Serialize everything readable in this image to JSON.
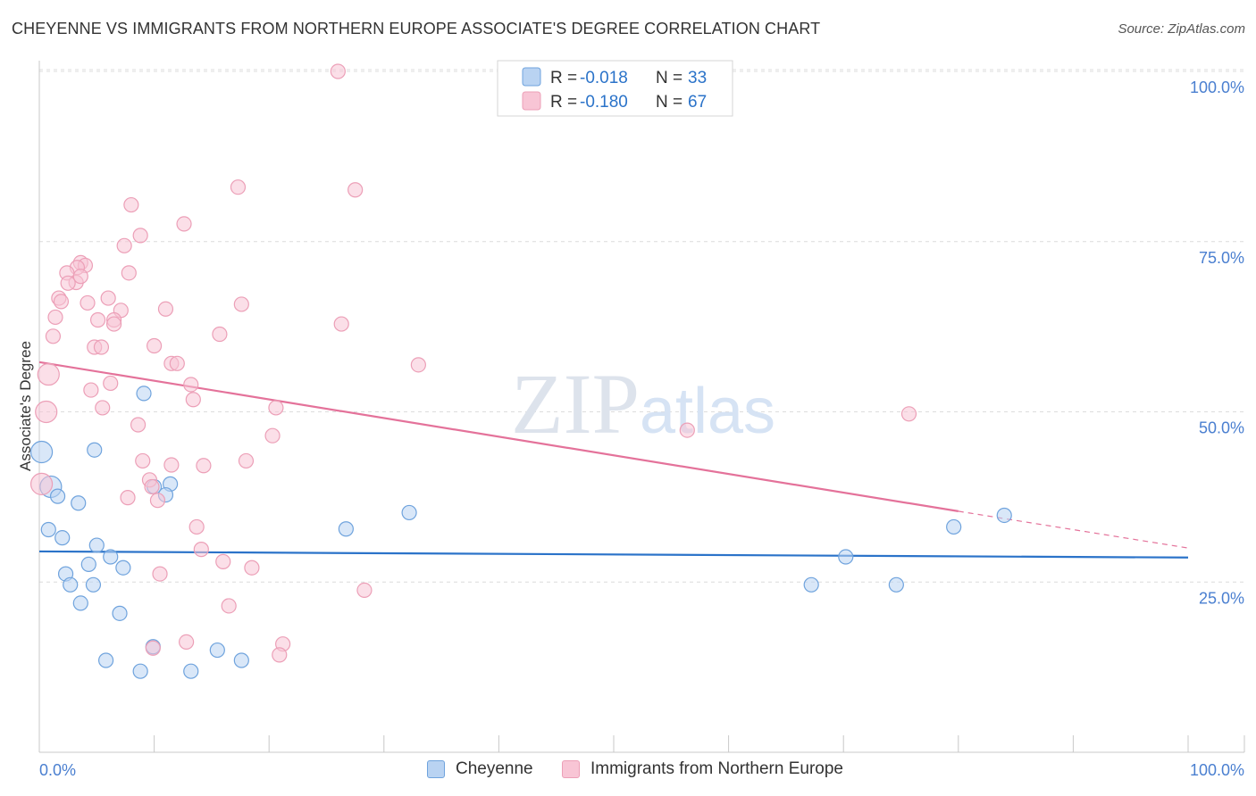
{
  "chart_data": {
    "type": "scatter",
    "title": "CHEYENNE VS IMMIGRANTS FROM NORTHERN EUROPE ASSOCIATE'S DEGREE CORRELATION CHART",
    "source": "Source: ZipAtlas.com",
    "xlabel": "",
    "ylabel": "Associate's Degree",
    "xlim": [
      0,
      100
    ],
    "ylim": [
      0,
      100
    ],
    "x_tick_labels": [
      "0.0%",
      "100.0%"
    ],
    "y_ticks": [
      25,
      50,
      75,
      100
    ],
    "y_tick_labels": [
      "25.0%",
      "50.0%",
      "75.0%",
      "100.0%"
    ],
    "watermark": "ZIPatlas",
    "legend": [
      {
        "r_label": "R =",
        "r_value": "-0.018",
        "n_label": "N =",
        "n_value": "33"
      },
      {
        "r_label": "R =",
        "r_value": "-0.180",
        "n_label": "N =",
        "n_value": "67"
      }
    ],
    "series": [
      {
        "name": "Cheyenne",
        "color": "#6fa3dd",
        "fill": "#b9d3f2",
        "line_color": "#2b73c9",
        "trend": {
          "x0": 0,
          "y0": 29.5,
          "x1": 100,
          "y1": 28.6
        },
        "points": [
          [
            0.2,
            44.1
          ],
          [
            1.0,
            39.0
          ],
          [
            1.6,
            37.6
          ],
          [
            0.8,
            32.7
          ],
          [
            2.0,
            31.5
          ],
          [
            3.4,
            36.6
          ],
          [
            4.8,
            44.4
          ],
          [
            9.1,
            52.7
          ],
          [
            11.4,
            39.4
          ],
          [
            10.0,
            39.0
          ],
          [
            11.0,
            37.8
          ],
          [
            2.3,
            26.2
          ],
          [
            2.7,
            24.6
          ],
          [
            4.3,
            27.6
          ],
          [
            4.7,
            24.6
          ],
          [
            3.6,
            21.9
          ],
          [
            5.0,
            30.4
          ],
          [
            6.2,
            28.7
          ],
          [
            7.3,
            27.1
          ],
          [
            7.0,
            20.4
          ],
          [
            5.8,
            13.5
          ],
          [
            8.8,
            11.9
          ],
          [
            9.9,
            15.5
          ],
          [
            13.2,
            11.9
          ],
          [
            15.5,
            15.0
          ],
          [
            17.6,
            13.5
          ],
          [
            26.7,
            32.8
          ],
          [
            32.2,
            35.2
          ],
          [
            67.2,
            24.6
          ],
          [
            70.2,
            28.7
          ],
          [
            74.6,
            24.6
          ],
          [
            79.6,
            33.1
          ],
          [
            84.0,
            34.8
          ]
        ]
      },
      {
        "name": "Immigrants from Northern Europe",
        "color": "#ec9fb7",
        "fill": "#f8c5d5",
        "line_color": "#e4729a",
        "trend": {
          "x0": 0,
          "y0": 57.3,
          "x1": 80,
          "y1": 35.4
        },
        "trend_dash_to": {
          "x1": 100,
          "y1": 30.0
        },
        "points": [
          [
            26.0,
            100.0
          ],
          [
            17.3,
            83.0
          ],
          [
            27.5,
            82.6
          ],
          [
            8.0,
            80.4
          ],
          [
            12.6,
            77.6
          ],
          [
            8.8,
            75.9
          ],
          [
            7.4,
            74.4
          ],
          [
            3.6,
            71.9
          ],
          [
            4.0,
            71.5
          ],
          [
            3.3,
            71.2
          ],
          [
            2.4,
            70.4
          ],
          [
            3.2,
            69.0
          ],
          [
            3.6,
            69.9
          ],
          [
            7.8,
            70.4
          ],
          [
            2.5,
            68.9
          ],
          [
            1.7,
            66.7
          ],
          [
            1.9,
            66.2
          ],
          [
            4.2,
            66.0
          ],
          [
            6.0,
            66.7
          ],
          [
            7.1,
            64.9
          ],
          [
            11.0,
            65.1
          ],
          [
            17.6,
            65.8
          ],
          [
            1.4,
            63.9
          ],
          [
            5.1,
            63.5
          ],
          [
            6.5,
            63.5
          ],
          [
            6.5,
            62.9
          ],
          [
            26.3,
            62.9
          ],
          [
            1.2,
            61.1
          ],
          [
            15.7,
            61.4
          ],
          [
            4.8,
            59.5
          ],
          [
            5.4,
            59.5
          ],
          [
            10.0,
            59.7
          ],
          [
            11.5,
            57.1
          ],
          [
            12.0,
            57.1
          ],
          [
            33.0,
            56.9
          ],
          [
            0.8,
            55.5
          ],
          [
            6.2,
            54.2
          ],
          [
            4.5,
            53.2
          ],
          [
            13.2,
            54.0
          ],
          [
            13.4,
            51.8
          ],
          [
            0.6,
            50.0
          ],
          [
            5.5,
            50.6
          ],
          [
            20.6,
            50.6
          ],
          [
            75.7,
            49.7
          ],
          [
            8.6,
            48.1
          ],
          [
            56.4,
            47.3
          ],
          [
            20.3,
            46.5
          ],
          [
            9.0,
            42.8
          ],
          [
            11.5,
            42.2
          ],
          [
            14.3,
            42.1
          ],
          [
            18.0,
            42.8
          ],
          [
            0.2,
            39.4
          ],
          [
            9.6,
            40.0
          ],
          [
            9.8,
            39.0
          ],
          [
            7.7,
            37.4
          ],
          [
            10.3,
            37.0
          ],
          [
            13.7,
            33.1
          ],
          [
            14.1,
            29.8
          ],
          [
            16.0,
            28.0
          ],
          [
            18.5,
            27.1
          ],
          [
            10.5,
            26.2
          ],
          [
            16.5,
            21.5
          ],
          [
            28.3,
            23.8
          ],
          [
            12.8,
            16.2
          ],
          [
            9.9,
            15.3
          ],
          [
            21.2,
            15.9
          ],
          [
            20.9,
            14.3
          ]
        ]
      }
    ]
  }
}
